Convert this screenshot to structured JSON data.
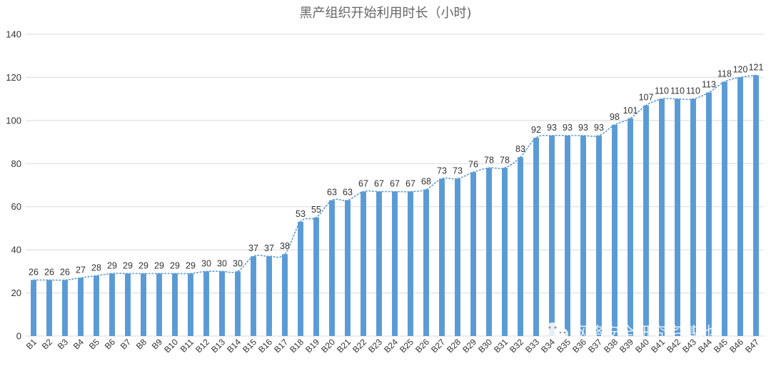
{
  "chart_data": {
    "type": "bar",
    "title": "黑产组织开始利用时长（小时)",
    "xlabel": "",
    "ylabel": "",
    "ylim": [
      0,
      140
    ],
    "yticks": [
      0,
      20,
      40,
      60,
      80,
      100,
      120,
      140
    ],
    "grid": true,
    "categories": [
      "B1",
      "B2",
      "B3",
      "B4",
      "B5",
      "B6",
      "B7",
      "B8",
      "B9",
      "B10",
      "B11",
      "B12",
      "B13",
      "B14",
      "B15",
      "B16",
      "B17",
      "B18",
      "B19",
      "B20",
      "B21",
      "B22",
      "B23",
      "B24",
      "B25",
      "B26",
      "B27",
      "B28",
      "B29",
      "B30",
      "B31",
      "B32",
      "B33",
      "B34",
      "B35",
      "B36",
      "B37",
      "B38",
      "B39",
      "B40",
      "B41",
      "B42",
      "B43",
      "B44",
      "B45",
      "B46",
      "B47"
    ],
    "values": [
      26,
      26,
      26,
      27,
      28,
      29,
      29,
      29,
      29,
      29,
      29,
      30,
      30,
      30,
      37,
      37,
      38,
      53,
      55,
      63,
      63,
      67,
      67,
      67,
      67,
      68,
      73,
      73,
      76,
      78,
      78,
      83,
      92,
      93,
      93,
      93,
      93,
      98,
      101,
      107,
      110,
      110,
      110,
      113,
      118,
      120,
      121
    ],
    "trendline": "dotted",
    "bar_color": "#5b9bd5",
    "trend_color": "#5b9bd5",
    "grid_color": "#d9d9d9"
  },
  "watermark": {
    "text": "网络安全研究宅基地",
    "icon": "wechat-icon"
  }
}
